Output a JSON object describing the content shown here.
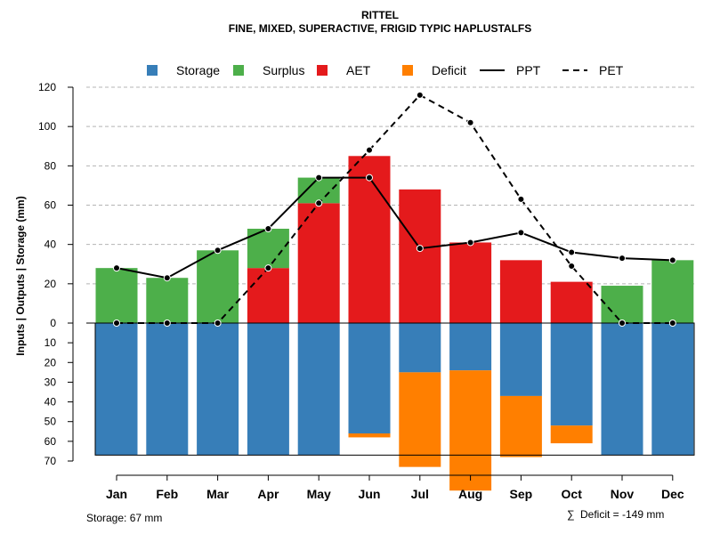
{
  "chart_data": {
    "type": "bar",
    "title": "RITTEL",
    "subtitle": "FINE, MIXED, SUPERACTIVE, FRIGID TYPIC HAPLUSTALFS",
    "ylabel": "Inputs | Outputs | Storage    (mm)",
    "categories": [
      "Jan",
      "Feb",
      "Mar",
      "Apr",
      "May",
      "Jun",
      "Jul",
      "Aug",
      "Sep",
      "Oct",
      "Nov",
      "Dec"
    ],
    "upper_ticks": [
      "0",
      "20",
      "40",
      "60",
      "80",
      "100",
      "120"
    ],
    "lower_ticks": [
      "10",
      "20",
      "30",
      "40",
      "50",
      "60",
      "70"
    ],
    "legend": [
      {
        "label": "Storage",
        "kind": "square",
        "color": "#377EB8"
      },
      {
        "label": "Surplus",
        "kind": "square",
        "color": "#4DAF4A"
      },
      {
        "label": "AET",
        "kind": "square",
        "color": "#E41A1C"
      },
      {
        "label": "Deficit",
        "kind": "square",
        "color": "#FF7F00"
      },
      {
        "label": "PPT",
        "kind": "solid"
      },
      {
        "label": "PET",
        "kind": "dashed"
      }
    ],
    "ylim_upper": [
      0,
      120
    ],
    "ylim_lower": [
      0,
      70
    ],
    "series": [
      {
        "name": "AET",
        "values": [
          0,
          0,
          0,
          28,
          61,
          85,
          68,
          41,
          32,
          21,
          0,
          0
        ]
      },
      {
        "name": "Surplus",
        "values": [
          28,
          23,
          37,
          20,
          13,
          0,
          0,
          0,
          0,
          0,
          19,
          32
        ]
      },
      {
        "name": "Storage",
        "values": [
          67,
          67,
          67,
          67,
          67,
          56,
          25,
          24,
          37,
          52,
          67,
          67
        ]
      },
      {
        "name": "Deficit",
        "values": [
          0,
          0,
          0,
          0,
          0,
          2,
          48,
          61,
          31,
          9,
          0,
          0
        ]
      },
      {
        "name": "PPT",
        "values": [
          28,
          23,
          37,
          48,
          74,
          74,
          38,
          41,
          46,
          36,
          33,
          32
        ]
      },
      {
        "name": "PET",
        "values": [
          0,
          0,
          0,
          28,
          61,
          88,
          116,
          102,
          63,
          29,
          0,
          0
        ]
      }
    ],
    "storage_note": "Storage: 67 mm",
    "deficit_note": "Deficit = -149 mm",
    "sum_symbol": "∑"
  },
  "colors": {
    "storage": "#377EB8",
    "surplus": "#4DAF4A",
    "aet": "#E41A1C",
    "deficit": "#FF7F00"
  }
}
